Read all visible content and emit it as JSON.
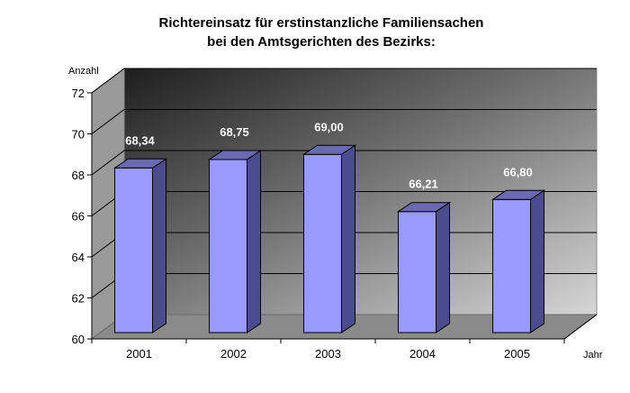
{
  "chart_data": {
    "type": "bar",
    "title": [
      "Richtereinsatz für erstinstanzliche Familiensachen",
      "bei den Amtsgerichten des Bezirks:"
    ],
    "xlabel": "Jahr",
    "ylabel": "Anzahl",
    "categories": [
      "2001",
      "2002",
      "2003",
      "2004",
      "2005"
    ],
    "values": [
      68.34,
      68.75,
      69.0,
      66.21,
      66.8
    ],
    "value_labels": [
      "68,34",
      "68,75",
      "69,00",
      "66,21",
      "66,80"
    ],
    "ylim": [
      60,
      72
    ],
    "yticks": [
      "60",
      "62",
      "64",
      "66",
      "68",
      "70",
      "72"
    ],
    "grid": true,
    "legend": "none",
    "colors": {
      "bar_front": "#9999ff",
      "bar_side": "#4b4b8f",
      "bar_top": "#6a6ab0",
      "bar_edge": "#000000",
      "floor": "#8a8a8a",
      "left_wall": "#9a9a9a",
      "label": "#ffffff"
    }
  }
}
